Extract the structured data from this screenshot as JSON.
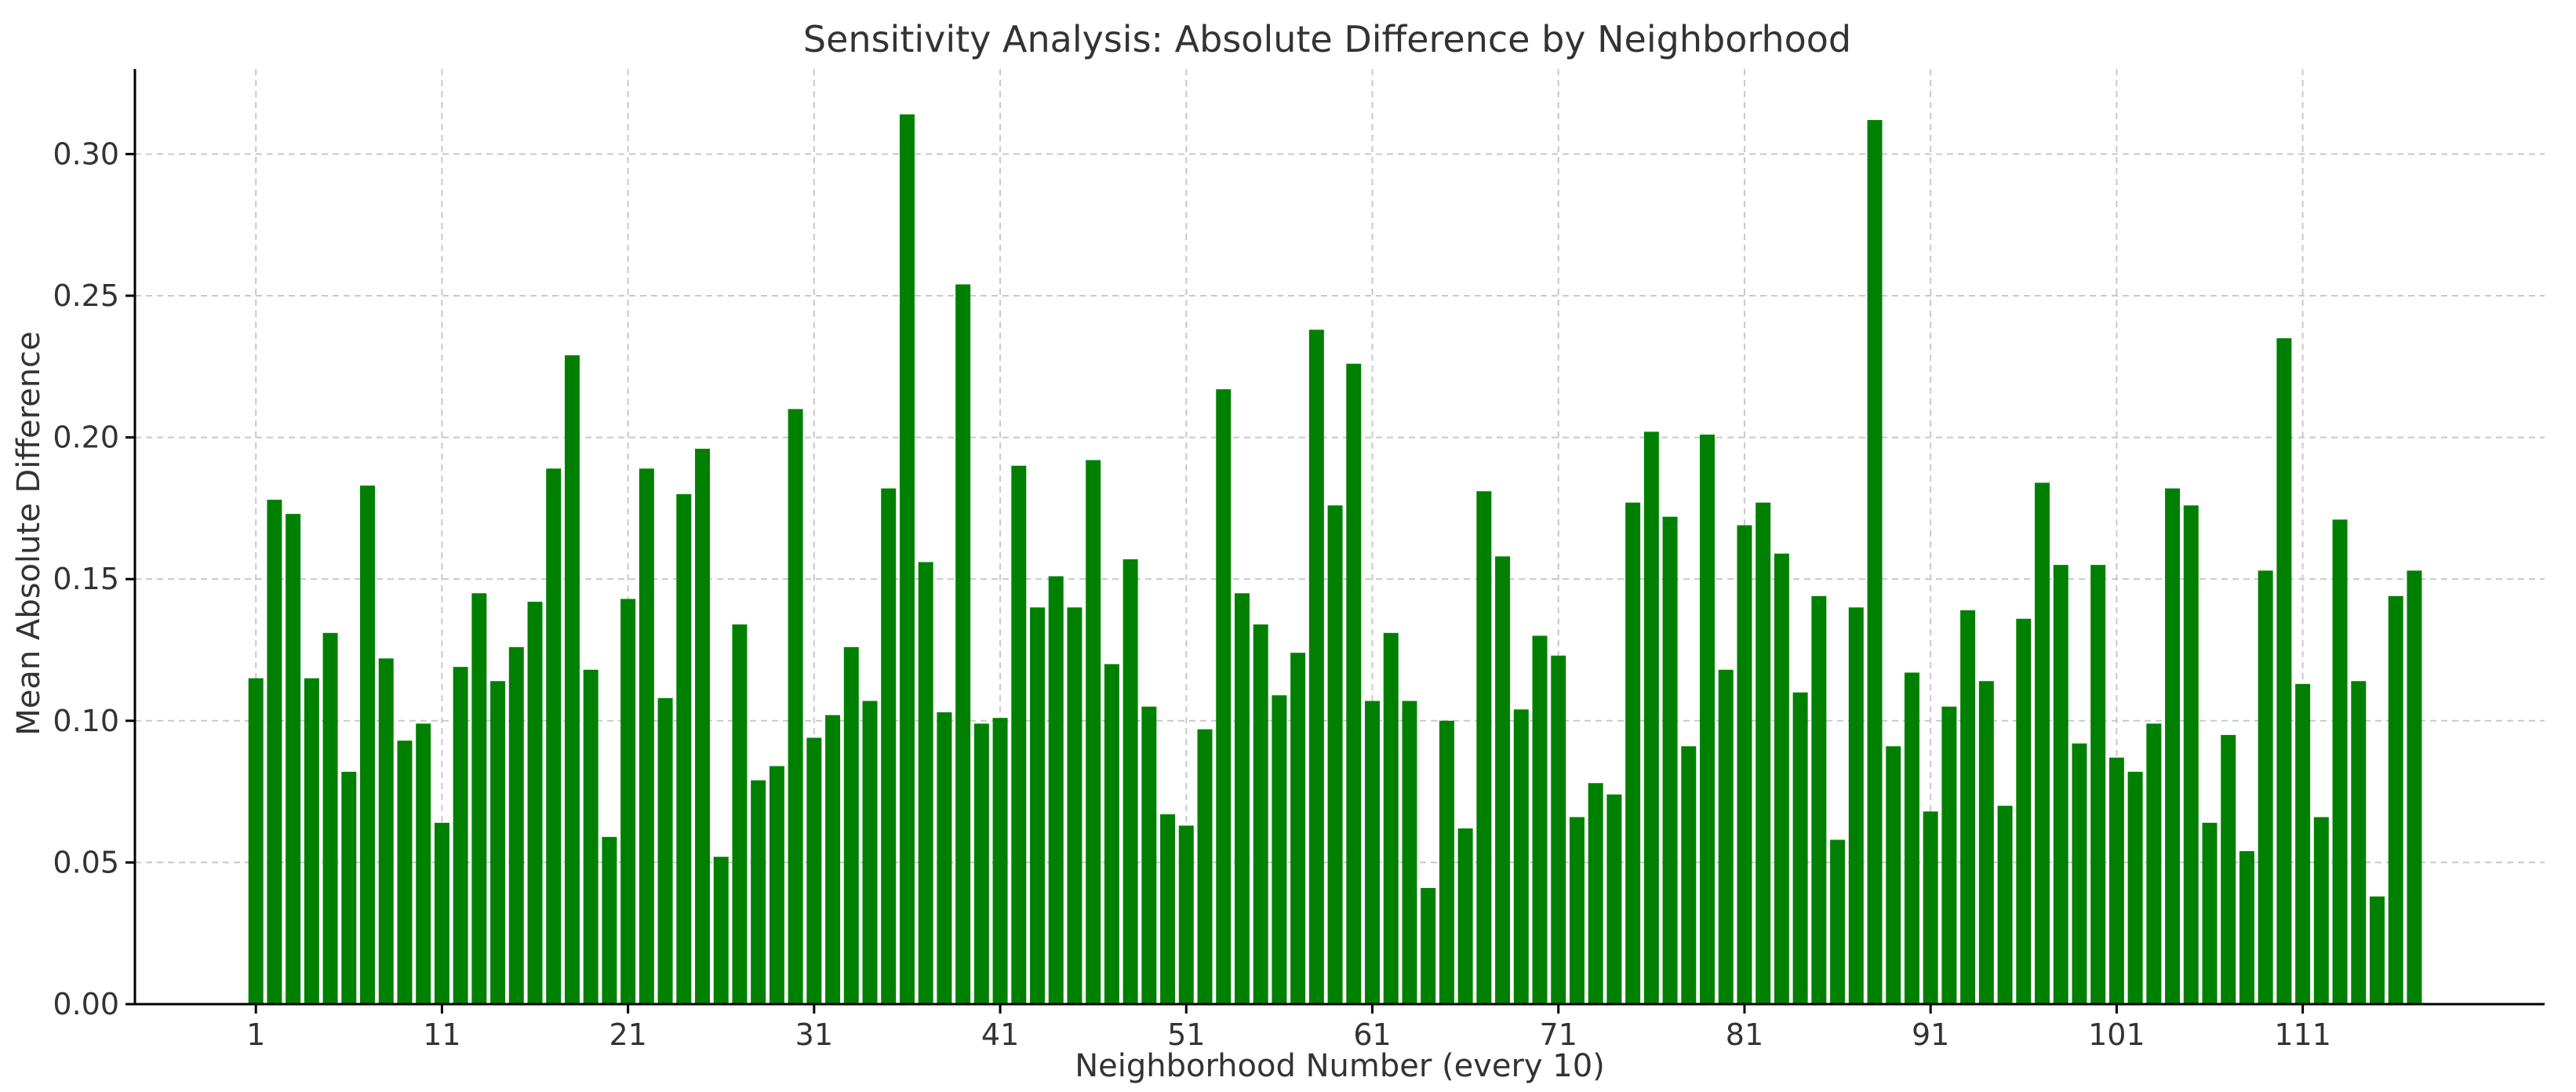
{
  "colors": {
    "bar": "#008000",
    "background": "#ffffff",
    "grid": "#c9c9c9",
    "text": "#333333"
  },
  "chart_data": {
    "type": "bar",
    "title": "Sensitivity Analysis: Absolute Difference by Neighborhood",
    "xlabel": "Neighborhood Number (every 10)",
    "ylabel": "Mean Absolute Difference",
    "ylim": [
      0,
      0.33
    ],
    "xlim": [
      -5.5,
      124
    ],
    "grid": true,
    "x_ticks": [
      1,
      11,
      21,
      31,
      41,
      51,
      61,
      71,
      81,
      91,
      101,
      111
    ],
    "y_ticks": [
      0.0,
      0.05,
      0.1,
      0.15,
      0.2,
      0.25,
      0.3
    ],
    "y_tick_labels": [
      "0.00",
      "0.05",
      "0.10",
      "0.15",
      "0.20",
      "0.25",
      "0.30"
    ],
    "x_start": 1,
    "values": [
      0.115,
      0.178,
      0.173,
      0.115,
      0.131,
      0.082,
      0.183,
      0.122,
      0.093,
      0.099,
      0.064,
      0.119,
      0.145,
      0.114,
      0.126,
      0.142,
      0.189,
      0.229,
      0.118,
      0.059,
      0.143,
      0.189,
      0.108,
      0.18,
      0.196,
      0.052,
      0.134,
      0.079,
      0.084,
      0.21,
      0.094,
      0.102,
      0.126,
      0.107,
      0.182,
      0.314,
      0.156,
      0.103,
      0.254,
      0.099,
      0.101,
      0.19,
      0.14,
      0.151,
      0.14,
      0.192,
      0.12,
      0.157,
      0.105,
      0.067,
      0.063,
      0.097,
      0.217,
      0.145,
      0.134,
      0.109,
      0.124,
      0.238,
      0.176,
      0.226,
      0.107,
      0.131,
      0.107,
      0.041,
      0.1,
      0.062,
      0.181,
      0.158,
      0.104,
      0.13,
      0.123,
      0.066,
      0.078,
      0.074,
      0.177,
      0.202,
      0.172,
      0.091,
      0.201,
      0.118,
      0.169,
      0.177,
      0.159,
      0.11,
      0.144,
      0.058,
      0.14,
      0.312,
      0.091,
      0.117,
      0.068,
      0.105,
      0.139,
      0.114,
      0.07,
      0.136,
      0.184,
      0.155,
      0.092,
      0.155,
      0.087,
      0.082,
      0.099,
      0.182,
      0.176,
      0.064,
      0.095,
      0.054,
      0.153,
      0.235,
      0.113,
      0.066,
      0.171,
      0.114,
      0.038,
      0.144,
      0.153
    ]
  }
}
